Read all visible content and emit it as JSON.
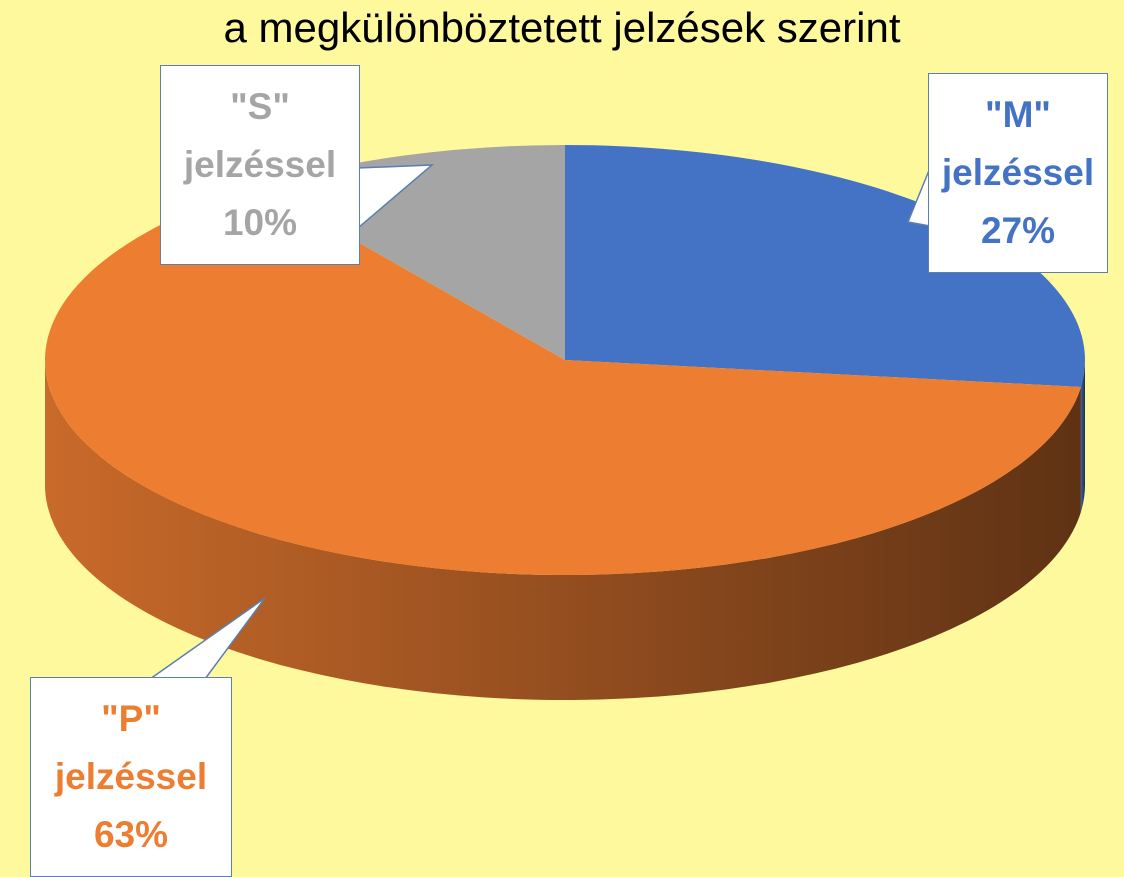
{
  "chart_data": {
    "type": "pie3d",
    "title": "a megkülönböztetett jelzések szerint",
    "categories": [
      "\"M\" jelzéssel",
      "\"P\" jelzéssel",
      "\"S\" jelzéssel"
    ],
    "values": [
      27,
      63,
      10
    ],
    "value_labels": [
      "27%",
      "63%",
      "10%"
    ],
    "colors": [
      "#4472c4",
      "#ed7d31",
      "#a5a5a5"
    ]
  }
}
